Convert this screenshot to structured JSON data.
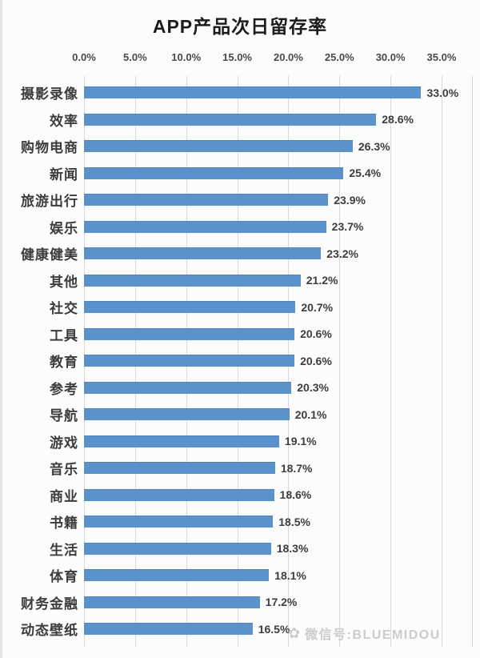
{
  "chart_data": {
    "type": "bar",
    "orientation": "horizontal",
    "title": "APP产品次日留存率",
    "categories": [
      "摄影录像",
      "效率",
      "购物电商",
      "新闻",
      "旅游出行",
      "娱乐",
      "健康健美",
      "其他",
      "社交",
      "工具",
      "教育",
      "参考",
      "导航",
      "游戏",
      "音乐",
      "商业",
      "书籍",
      "生活",
      "体育",
      "财务金融",
      "动态壁纸"
    ],
    "values": [
      33.0,
      28.6,
      26.3,
      25.4,
      23.9,
      23.7,
      23.2,
      21.2,
      20.7,
      20.6,
      20.6,
      20.3,
      20.1,
      19.1,
      18.7,
      18.6,
      18.5,
      18.3,
      18.1,
      17.2,
      16.5
    ],
    "value_labels": [
      "33.0%",
      "28.6%",
      "26.3%",
      "25.4%",
      "23.9%",
      "23.7%",
      "23.2%",
      "21.2%",
      "20.7%",
      "20.6%",
      "20.6%",
      "20.3%",
      "20.1%",
      "19.1%",
      "18.7%",
      "18.6%",
      "18.5%",
      "18.3%",
      "18.1%",
      "17.2%",
      "16.5%"
    ],
    "x_ticks": [
      "0.0%",
      "5.0%",
      "10.0%",
      "15.0%",
      "20.0%",
      "25.0%",
      "30.0%",
      "35.0%"
    ],
    "xlim": [
      0,
      35
    ],
    "grid": true,
    "legend": "none",
    "data_label_position": "outside-end",
    "bar_color": "#5b92cc",
    "gridline_color": "#d9d9d9"
  },
  "watermark": {
    "logo": "✿",
    "text": "微信号:BLUEMIDOU"
  }
}
